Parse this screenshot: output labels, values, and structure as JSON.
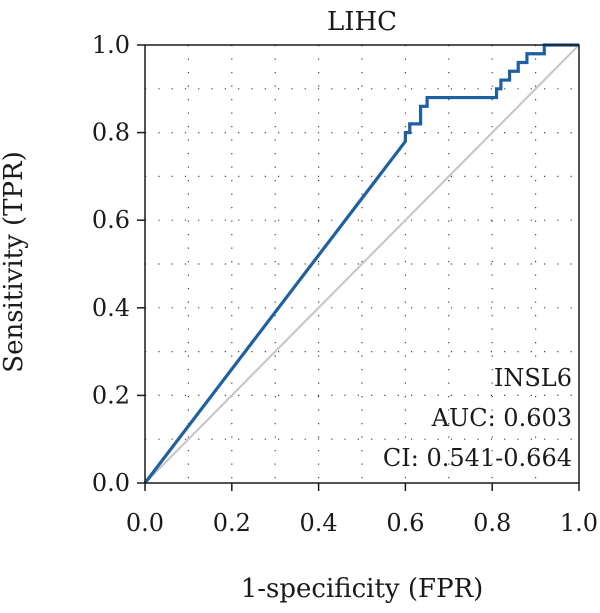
{
  "chart_data": {
    "type": "line",
    "title": "LIHC",
    "xlabel": "1-specificity (FPR)",
    "ylabel": "Sensitivity (TPR)",
    "xlim": [
      0,
      1
    ],
    "ylim": [
      0,
      1
    ],
    "x_ticks": [
      "0.0",
      "0.2",
      "0.4",
      "0.6",
      "0.8",
      "1.0"
    ],
    "y_ticks": [
      "0.0",
      "0.2",
      "0.4",
      "0.6",
      "0.8",
      "1.0"
    ],
    "grid": "dotted",
    "series": [
      {
        "color": "#1f5fa3",
        "x": [
          0.0,
          0.6,
          0.6,
          0.61,
          0.61,
          0.62,
          0.62,
          0.635,
          0.635,
          0.65,
          0.65,
          0.81,
          0.81,
          0.82,
          0.82,
          0.84,
          0.84,
          0.86,
          0.86,
          0.88,
          0.88,
          0.905,
          0.905,
          0.92,
          0.92,
          1.0
        ],
        "y": [
          0.0,
          0.78,
          0.8,
          0.8,
          0.82,
          0.82,
          0.82,
          0.82,
          0.86,
          0.86,
          0.88,
          0.88,
          0.9,
          0.9,
          0.92,
          0.92,
          0.94,
          0.94,
          0.96,
          0.96,
          0.98,
          0.98,
          0.98,
          0.98,
          1.0,
          1.0
        ]
      },
      {
        "color": "#c8c8cc",
        "x": [
          0,
          1
        ],
        "y": [
          0,
          1
        ]
      }
    ],
    "annotations": {
      "gene": "INSL6",
      "auc": "AUC: 0.603",
      "ci": "CI: 0.541-0.664"
    }
  }
}
